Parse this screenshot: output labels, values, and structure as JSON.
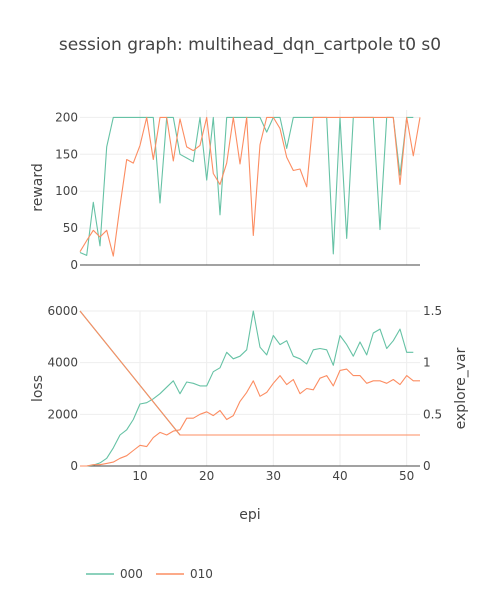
{
  "chart_data": {
    "type": "line",
    "title": "session graph: multihead_dqn_cartpole t0 s0",
    "xlabel": "epi",
    "x_ticks": [
      10,
      20,
      30,
      40,
      50
    ],
    "x_range": [
      1,
      52
    ],
    "colors": {
      "000": "#66c2a5",
      "010": "#fc8d62"
    },
    "legend": [
      "000",
      "010"
    ],
    "legend_placement": "bottom-left",
    "grid": true,
    "panels": [
      {
        "id": "reward",
        "ylabel": "reward",
        "ylim": [
          0,
          210
        ],
        "y_ticks": [
          0,
          50,
          100,
          150,
          200
        ],
        "series": [
          {
            "name": "000",
            "x": [
              1,
              2,
              3,
              4,
              5,
              6,
              7,
              8,
              9,
              10,
              11,
              12,
              13,
              14,
              15,
              16,
              17,
              18,
              19,
              20,
              21,
              22,
              23,
              24,
              25,
              26,
              27,
              28,
              29,
              30,
              31,
              32,
              33,
              34,
              35,
              36,
              37,
              38,
              39,
              40,
              41,
              42,
              43,
              44,
              45,
              46,
              47,
              48,
              49,
              50,
              51
            ],
            "values": [
              17,
              13,
              85,
              26,
              160,
              200,
              200,
              200,
              200,
              200,
              200,
              200,
              84,
              200,
              200,
              150,
              145,
              140,
              200,
              115,
              200,
              68,
              200,
              200,
              200,
              200,
              200,
              200,
              180,
              200,
              200,
              158,
              200,
              200,
              200,
              200,
              200,
              200,
              15,
              200,
              36,
              200,
              200,
              200,
              200,
              48,
              200,
              200,
              122,
              200,
              200
            ]
          },
          {
            "name": "010",
            "x": [
              1,
              2,
              3,
              4,
              5,
              6,
              7,
              8,
              9,
              10,
              11,
              12,
              13,
              14,
              15,
              16,
              17,
              18,
              19,
              20,
              21,
              22,
              23,
              24,
              25,
              26,
              27,
              28,
              29,
              30,
              31,
              32,
              33,
              34,
              35,
              36,
              37,
              38,
              39,
              40,
              41,
              42,
              43,
              44,
              45,
              46,
              47,
              48,
              49,
              50,
              51,
              52
            ],
            "values": [
              18,
              33,
              47,
              38,
              47,
              12,
              80,
              143,
              138,
              162,
              200,
              143,
              200,
              200,
              141,
              198,
              160,
              155,
              162,
              200,
              124,
              109,
              138,
              200,
              137,
              200,
              40,
              163,
              200,
              200,
              185,
              146,
              128,
              130,
              106,
              200,
              200,
              200,
              200,
              200,
              200,
              200,
              200,
              200,
              200,
              200,
              200,
              200,
              109,
              200,
              148,
              200
            ]
          }
        ]
      },
      {
        "id": "loss",
        "ylabel": "loss",
        "ylim": [
          0,
          6000
        ],
        "y_ticks": [
          0,
          2000,
          4000,
          6000
        ],
        "y2label": "explore_var",
        "y2lim": [
          0,
          1.5
        ],
        "y2_ticks": [
          0,
          0.5,
          1,
          1.5
        ],
        "series": [
          {
            "name": "000",
            "axis": "y",
            "x": [
              1,
              2,
              3,
              4,
              5,
              6,
              7,
              8,
              9,
              10,
              11,
              12,
              13,
              14,
              15,
              16,
              17,
              18,
              19,
              20,
              21,
              22,
              23,
              24,
              25,
              26,
              27,
              28,
              29,
              30,
              31,
              32,
              33,
              34,
              35,
              36,
              37,
              38,
              39,
              40,
              41,
              42,
              43,
              44,
              45,
              46,
              47,
              48,
              49,
              50,
              51
            ],
            "values": [
              0,
              0,
              30,
              120,
              300,
              700,
              1200,
              1400,
              1800,
              2400,
              2450,
              2600,
              2800,
              3050,
              3300,
              2800,
              3250,
              3200,
              3100,
              3100,
              3650,
              3800,
              4400,
              4150,
              4250,
              4500,
              6000,
              4600,
              4300,
              5050,
              4700,
              4850,
              4250,
              4150,
              3950,
              4500,
              4550,
              4500,
              3900,
              5050,
              4700,
              4250,
              4800,
              4300,
              5150,
              5300,
              4550,
              4850,
              5300,
              4400,
              4400
            ]
          },
          {
            "name": "010",
            "axis": "y",
            "x": [
              1,
              2,
              3,
              4,
              5,
              6,
              7,
              8,
              9,
              10,
              11,
              12,
              13,
              14,
              15,
              16,
              17,
              18,
              19,
              20,
              21,
              22,
              23,
              24,
              25,
              26,
              27,
              28,
              29,
              30,
              31,
              32,
              33,
              34,
              35,
              36,
              37,
              38,
              39,
              40,
              41,
              42,
              43,
              44,
              45,
              46,
              47,
              48,
              49,
              50,
              51,
              52
            ],
            "values": [
              0,
              0,
              50,
              50,
              100,
              150,
              300,
              400,
              600,
              800,
              750,
              1100,
              1300,
              1200,
              1350,
              1400,
              1850,
              1850,
              2000,
              2100,
              1950,
              2150,
              1800,
              1950,
              2500,
              2850,
              3300,
              2700,
              2850,
              3200,
              3500,
              3150,
              3350,
              2800,
              3000,
              2950,
              3400,
              3500,
              3100,
              3700,
              3750,
              3500,
              3500,
              3200,
              3300,
              3300,
              3200,
              3350,
              3150,
              3500,
              3300,
              3300
            ]
          },
          {
            "name": "000",
            "axis": "y2",
            "x": [
              1,
              16,
              52
            ],
            "values": [
              1.5,
              0.3,
              0.3
            ]
          },
          {
            "name": "010",
            "axis": "y2",
            "x": [
              1,
              16,
              52
            ],
            "values": [
              1.5,
              0.3,
              0.3
            ]
          }
        ]
      }
    ]
  }
}
